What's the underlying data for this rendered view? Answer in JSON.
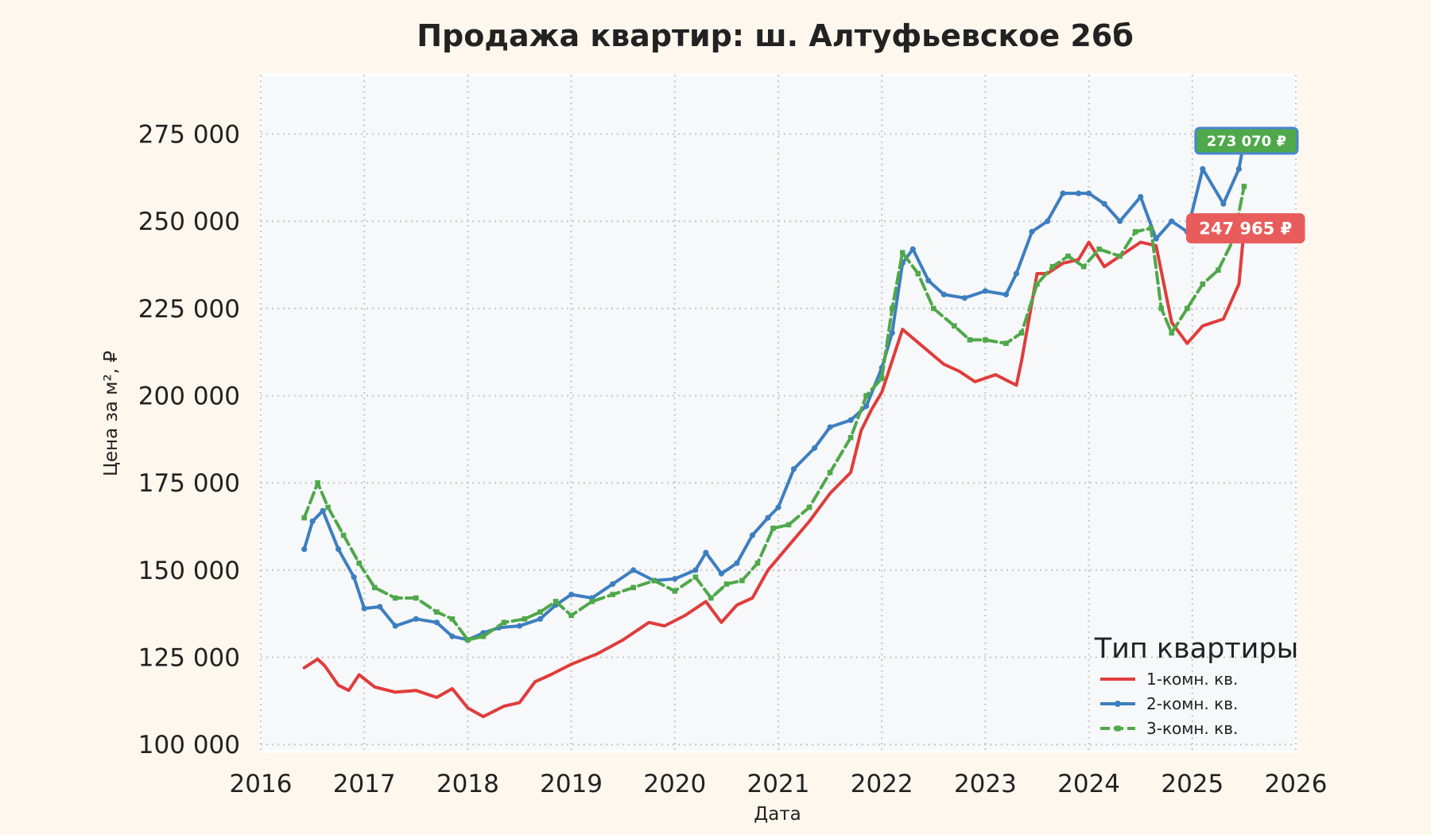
{
  "chart_data": {
    "type": "line",
    "title": "Продажа квартир: ш. Алтуфьевское 26б",
    "xlabel": "Дата",
    "ylabel": "Цена за м², ₽",
    "xlim": [
      2016,
      2026
    ],
    "ylim": [
      98000,
      292000
    ],
    "x_ticks": [
      2016,
      2017,
      2018,
      2019,
      2020,
      2021,
      2022,
      2023,
      2024,
      2025,
      2026
    ],
    "x_tick_labels": [
      "2016",
      "2017",
      "2018",
      "2019",
      "2020",
      "2021",
      "2022",
      "2023",
      "2024",
      "2025",
      "2026"
    ],
    "y_ticks": [
      100000,
      125000,
      150000,
      175000,
      200000,
      225000,
      250000,
      275000
    ],
    "y_tick_labels": [
      "100 000",
      "125 000",
      "150 000",
      "175 000",
      "200 000",
      "225 000",
      "250 000",
      "275 000"
    ],
    "grid": true,
    "legend": {
      "title": "Тип квартиры",
      "placement": "bottom-right"
    },
    "series": [
      {
        "name": "1-комн. кв.",
        "color": "#e03c3c",
        "marker": "none",
        "dash": "solid",
        "x": [
          2016.42,
          2016.55,
          2016.62,
          2016.75,
          2016.85,
          2016.95,
          2017.1,
          2017.3,
          2017.5,
          2017.7,
          2017.85,
          2018.0,
          2018.15,
          2018.35,
          2018.5,
          2018.65,
          2018.8,
          2019.0,
          2019.25,
          2019.5,
          2019.75,
          2019.9,
          2020.1,
          2020.3,
          2020.45,
          2020.6,
          2020.75,
          2020.9,
          2021.1,
          2021.3,
          2021.5,
          2021.7,
          2021.8,
          2021.9,
          2022.0,
          2022.1,
          2022.2,
          2022.4,
          2022.6,
          2022.75,
          2022.9,
          2023.1,
          2023.3,
          2023.35,
          2023.5,
          2023.6,
          2023.75,
          2023.9,
          2024.0,
          2024.15,
          2024.3,
          2024.5,
          2024.65,
          2024.8,
          2024.95,
          2025.1,
          2025.3,
          2025.45,
          2025.5
        ],
        "values": [
          122000,
          124500,
          122500,
          117000,
          115500,
          120000,
          116500,
          115000,
          115500,
          113500,
          116000,
          110500,
          108000,
          111000,
          112000,
          118000,
          120000,
          123000,
          126000,
          130000,
          135000,
          134000,
          137000,
          141000,
          135000,
          140000,
          142000,
          150000,
          157000,
          164000,
          172000,
          178000,
          190000,
          196000,
          201000,
          210000,
          219000,
          214000,
          209000,
          207000,
          204000,
          206000,
          203000,
          210000,
          235000,
          235000,
          238000,
          239000,
          244000,
          237000,
          240000,
          244000,
          243000,
          221000,
          215000,
          220000,
          222000,
          232000,
          247965
        ]
      },
      {
        "name": "2-комн. кв.",
        "color": "#3d7ec0",
        "marker": "dot",
        "dash": "solid",
        "x": [
          2016.42,
          2016.5,
          2016.6,
          2016.75,
          2016.9,
          2017.0,
          2017.15,
          2017.3,
          2017.5,
          2017.7,
          2017.85,
          2018.0,
          2018.15,
          2018.3,
          2018.5,
          2018.7,
          2018.85,
          2019.0,
          2019.2,
          2019.4,
          2019.6,
          2019.8,
          2020.0,
          2020.2,
          2020.3,
          2020.45,
          2020.6,
          2020.75,
          2020.9,
          2021.0,
          2021.15,
          2021.35,
          2021.5,
          2021.7,
          2021.85,
          2022.0,
          2022.1,
          2022.2,
          2022.3,
          2022.45,
          2022.6,
          2022.8,
          2023.0,
          2023.2,
          2023.3,
          2023.45,
          2023.6,
          2023.75,
          2023.9,
          2024.0,
          2024.15,
          2024.3,
          2024.5,
          2024.65,
          2024.8,
          2024.95,
          2025.1,
          2025.3,
          2025.45,
          2025.5
        ],
        "values": [
          156000,
          164000,
          167000,
          156000,
          148000,
          139000,
          139500,
          134000,
          136000,
          135000,
          131000,
          130000,
          132000,
          133500,
          134000,
          136000,
          140000,
          143000,
          142000,
          146000,
          150000,
          147000,
          147500,
          150000,
          155000,
          149000,
          152000,
          160000,
          165000,
          168000,
          179000,
          185000,
          191000,
          193000,
          197000,
          208000,
          218000,
          238000,
          242000,
          233000,
          229000,
          228000,
          230000,
          229000,
          235000,
          247000,
          250000,
          258000,
          258000,
          258000,
          255000,
          250000,
          257000,
          245000,
          250000,
          247000,
          265000,
          255000,
          265000,
          273070
        ]
      },
      {
        "name": "3-комн. кв.",
        "color": "#4fa84a",
        "marker": "square",
        "dash": "dashed",
        "x": [
          2016.42,
          2016.55,
          2016.65,
          2016.8,
          2016.95,
          2017.1,
          2017.3,
          2017.5,
          2017.7,
          2017.85,
          2018.0,
          2018.15,
          2018.35,
          2018.55,
          2018.7,
          2018.85,
          2019.0,
          2019.2,
          2019.4,
          2019.6,
          2019.8,
          2020.0,
          2020.2,
          2020.35,
          2020.5,
          2020.65,
          2020.8,
          2020.95,
          2021.1,
          2021.3,
          2021.5,
          2021.7,
          2021.85,
          2022.0,
          2022.1,
          2022.2,
          2022.35,
          2022.5,
          2022.7,
          2022.85,
          2023.0,
          2023.2,
          2023.35,
          2023.5,
          2023.65,
          2023.8,
          2023.95,
          2024.1,
          2024.3,
          2024.45,
          2024.6,
          2024.7,
          2024.8,
          2024.95,
          2025.1,
          2025.25,
          2025.4,
          2025.5
        ],
        "values": [
          165000,
          175000,
          168000,
          160000,
          152000,
          145000,
          142000,
          142000,
          138000,
          136000,
          130000,
          131000,
          135000,
          136000,
          138000,
          141000,
          137000,
          141000,
          143000,
          145000,
          147000,
          144000,
          148000,
          142000,
          146000,
          147000,
          152000,
          162000,
          163000,
          168000,
          178000,
          188000,
          200000,
          205000,
          225000,
          241000,
          235000,
          225000,
          220000,
          216000,
          216000,
          215000,
          218000,
          232000,
          237000,
          240000,
          237000,
          242000,
          240000,
          247000,
          248000,
          225000,
          218000,
          225000,
          232000,
          236000,
          245000,
          260000
        ]
      }
    ],
    "annotations": [
      {
        "series": "2-комн. кв.",
        "text": "273 070 ₽",
        "value": 273070
      },
      {
        "series": "1-комн. кв.",
        "text": "247 965 ₽",
        "value": 247965
      }
    ]
  }
}
